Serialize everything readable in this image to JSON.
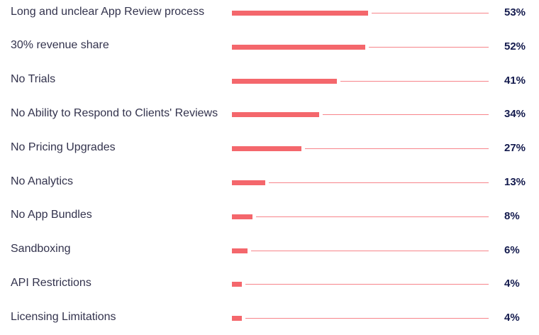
{
  "chart_data": {
    "type": "bar",
    "orientation": "horizontal",
    "title": "",
    "xlabel": "",
    "ylabel": "",
    "xlim": [
      0,
      100
    ],
    "grid": false,
    "legend": "none",
    "colors": {
      "bar": "#f4676c",
      "track": "#f7848a",
      "label": "#33334d",
      "value": "#131a4d"
    },
    "categories": [
      "Long and unclear App Review process",
      "30% revenue share",
      "No Trials",
      "No Ability to Respond to Clients' Reviews",
      "No Pricing Upgrades",
      "No Analytics",
      "No App Bundles",
      "Sandboxing",
      "API Restrictions",
      "Licensing Limitations"
    ],
    "values": [
      53,
      52,
      41,
      34,
      27,
      13,
      8,
      6,
      4,
      4
    ],
    "value_labels": [
      "53%",
      "52%",
      "41%",
      "34%",
      "27%",
      "13%",
      "8%",
      "6%",
      "4%",
      "4%"
    ]
  }
}
